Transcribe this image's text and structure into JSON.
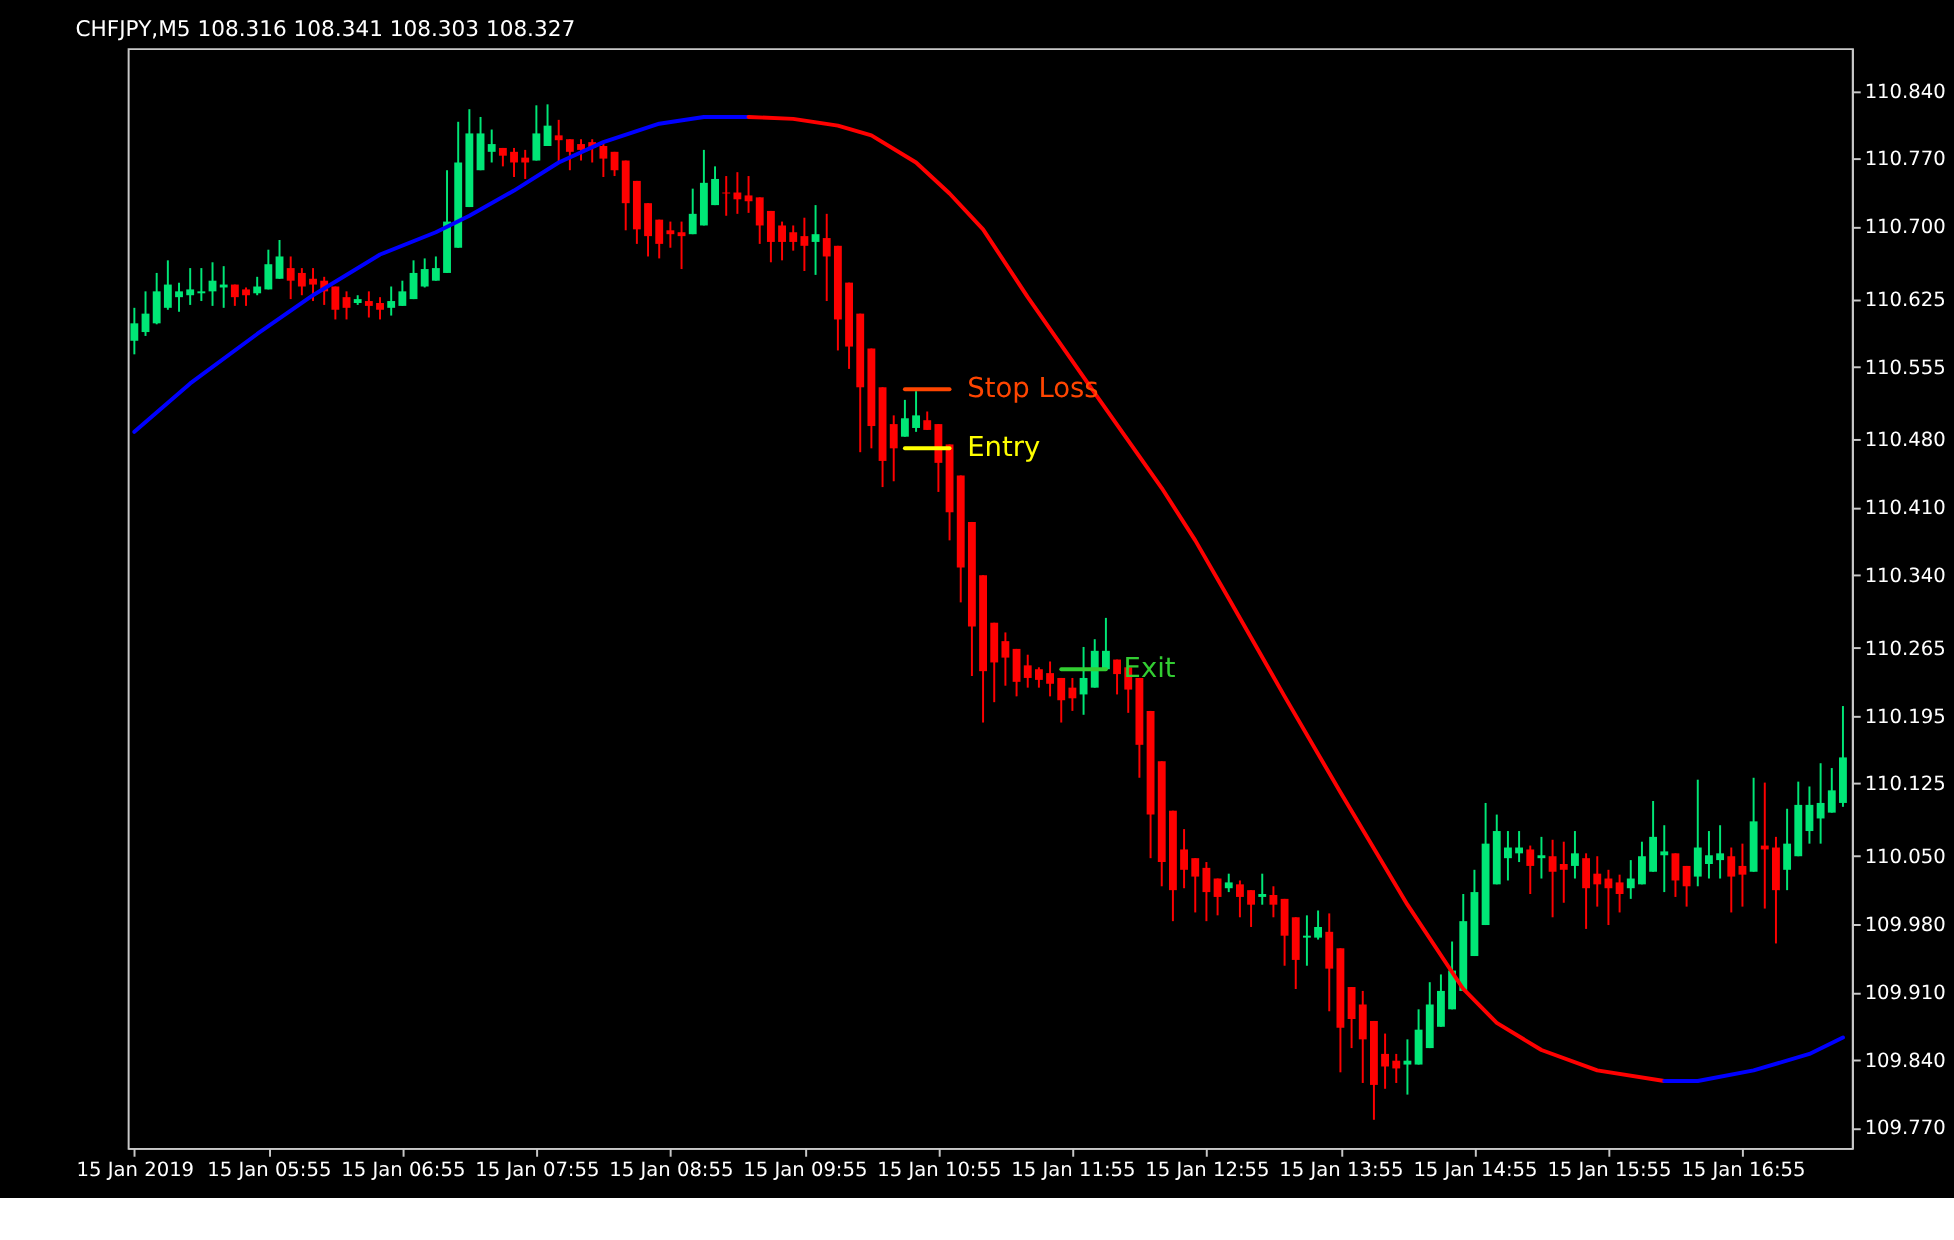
{
  "chart_data": {
    "type": "candlestick",
    "title": "CHFJPY,M5  108.316 108.341 108.303 108.327",
    "x": [
      "2019-01-15T04:55",
      "2019-01-15T05:00",
      "2019-01-15T05:05",
      "2019-01-15T05:10",
      "2019-01-15T05:15",
      "2019-01-15T05:20",
      "2019-01-15T05:25",
      "2019-01-15T05:30",
      "2019-01-15T05:35",
      "2019-01-15T05:40",
      "2019-01-15T05:45",
      "2019-01-15T05:50",
      "2019-01-15T05:55",
      "2019-01-15T06:00",
      "2019-01-15T06:05",
      "2019-01-15T06:10",
      "2019-01-15T06:15",
      "2019-01-15T06:20",
      "2019-01-15T06:25",
      "2019-01-15T06:30",
      "2019-01-15T06:35",
      "2019-01-15T06:40",
      "2019-01-15T06:45",
      "2019-01-15T06:50",
      "2019-01-15T06:55",
      "2019-01-15T07:00",
      "2019-01-15T07:05",
      "2019-01-15T07:10",
      "2019-01-15T07:15",
      "2019-01-15T07:20",
      "2019-01-15T07:25",
      "2019-01-15T07:30",
      "2019-01-15T07:35",
      "2019-01-15T07:40",
      "2019-01-15T07:45",
      "2019-01-15T07:50",
      "2019-01-15T07:55",
      "2019-01-15T08:00",
      "2019-01-15T08:05",
      "2019-01-15T08:10",
      "2019-01-15T08:15",
      "2019-01-15T08:20",
      "2019-01-15T08:25",
      "2019-01-15T08:30",
      "2019-01-15T08:35",
      "2019-01-15T08:40",
      "2019-01-15T08:45",
      "2019-01-15T08:50",
      "2019-01-15T08:55",
      "2019-01-15T09:00",
      "2019-01-15T09:05",
      "2019-01-15T09:10",
      "2019-01-15T09:15",
      "2019-01-15T09:20",
      "2019-01-15T09:25",
      "2019-01-15T09:30",
      "2019-01-15T09:35",
      "2019-01-15T09:40",
      "2019-01-15T09:45",
      "2019-01-15T09:50",
      "2019-01-15T09:55",
      "2019-01-15T10:00",
      "2019-01-15T10:05",
      "2019-01-15T10:10",
      "2019-01-15T10:15",
      "2019-01-15T10:20",
      "2019-01-15T10:25",
      "2019-01-15T10:30",
      "2019-01-15T10:35",
      "2019-01-15T10:40",
      "2019-01-15T10:45",
      "2019-01-15T10:50",
      "2019-01-15T10:55",
      "2019-01-15T11:00",
      "2019-01-15T11:05",
      "2019-01-15T11:10",
      "2019-01-15T11:15",
      "2019-01-15T11:20",
      "2019-01-15T11:25",
      "2019-01-15T11:30",
      "2019-01-15T11:35",
      "2019-01-15T11:40",
      "2019-01-15T11:45",
      "2019-01-15T11:50",
      "2019-01-15T11:55",
      "2019-01-15T12:00",
      "2019-01-15T12:05",
      "2019-01-15T12:10",
      "2019-01-15T12:15",
      "2019-01-15T12:20",
      "2019-01-15T12:25",
      "2019-01-15T12:30",
      "2019-01-15T12:35",
      "2019-01-15T12:40",
      "2019-01-15T12:45",
      "2019-01-15T12:50",
      "2019-01-15T12:55",
      "2019-01-15T13:00",
      "2019-01-15T13:05",
      "2019-01-15T13:10",
      "2019-01-15T13:15",
      "2019-01-15T13:20",
      "2019-01-15T13:25",
      "2019-01-15T13:30",
      "2019-01-15T13:35",
      "2019-01-15T13:40",
      "2019-01-15T13:45",
      "2019-01-15T13:50",
      "2019-01-15T13:55",
      "2019-01-15T14:00",
      "2019-01-15T14:05",
      "2019-01-15T14:10",
      "2019-01-15T14:15",
      "2019-01-15T14:20",
      "2019-01-15T14:25",
      "2019-01-15T14:30",
      "2019-01-15T14:35",
      "2019-01-15T14:40",
      "2019-01-15T14:45",
      "2019-01-15T14:50",
      "2019-01-15T14:55",
      "2019-01-15T15:00",
      "2019-01-15T15:05",
      "2019-01-15T15:10",
      "2019-01-15T15:15",
      "2019-01-15T15:20",
      "2019-01-15T15:25",
      "2019-01-15T15:30",
      "2019-01-15T15:35",
      "2019-01-15T15:40",
      "2019-01-15T15:45",
      "2019-01-15T15:50",
      "2019-01-15T15:55",
      "2019-01-15T16:00",
      "2019-01-15T16:05",
      "2019-01-15T16:10",
      "2019-01-15T16:15",
      "2019-01-15T16:20",
      "2019-01-15T16:25",
      "2019-01-15T16:30",
      "2019-01-15T16:35",
      "2019-01-15T16:40",
      "2019-01-15T16:45",
      "2019-01-15T16:50",
      "2019-01-15T16:55",
      "2019-01-15T17:00",
      "2019-01-15T17:05",
      "2019-01-15T17:10",
      "2019-01-15T17:15",
      "2019-01-15T17:20",
      "2019-01-15T17:25",
      "2019-01-15T17:30",
      "2019-01-15T17:35",
      "2019-01-15T17:40"
    ],
    "ohlc": [
      [
        110.582,
        110.616,
        110.568,
        110.6
      ],
      [
        110.591,
        110.633,
        110.587,
        110.61
      ],
      [
        110.6,
        110.652,
        110.599,
        110.633
      ],
      [
        110.616,
        110.665,
        110.614,
        110.64
      ],
      [
        110.627,
        110.642,
        110.612,
        110.633
      ],
      [
        110.629,
        110.657,
        110.619,
        110.635
      ],
      [
        110.631,
        110.657,
        110.623,
        110.633
      ],
      [
        110.633,
        110.663,
        110.618,
        110.644
      ],
      [
        110.637,
        110.659,
        110.616,
        110.64
      ],
      [
        110.64,
        110.64,
        110.618,
        110.627
      ],
      [
        110.635,
        110.637,
        110.618,
        110.629
      ],
      [
        110.631,
        110.648,
        110.629,
        110.638
      ],
      [
        110.635,
        110.676,
        110.635,
        110.661
      ],
      [
        110.646,
        110.686,
        110.646,
        110.669
      ],
      [
        110.657,
        110.669,
        110.625,
        110.644
      ],
      [
        110.652,
        110.657,
        110.629,
        110.638
      ],
      [
        110.646,
        110.657,
        110.623,
        110.64
      ],
      [
        110.644,
        110.648,
        110.619,
        110.633
      ],
      [
        110.638,
        110.638,
        110.604,
        110.614
      ],
      [
        110.627,
        110.633,
        110.604,
        110.616
      ],
      [
        110.621,
        110.629,
        110.619,
        110.625
      ],
      [
        110.623,
        110.633,
        110.606,
        110.618
      ],
      [
        110.621,
        110.627,
        110.604,
        110.614
      ],
      [
        110.616,
        110.638,
        110.608,
        110.623
      ],
      [
        110.618,
        110.644,
        110.618,
        110.633
      ],
      [
        110.625,
        110.665,
        110.625,
        110.652
      ],
      [
        110.638,
        110.667,
        110.637,
        110.656
      ],
      [
        110.644,
        110.669,
        110.644,
        110.657
      ],
      [
        110.652,
        110.758,
        110.652,
        110.705
      ],
      [
        110.678,
        110.808,
        110.678,
        110.766
      ],
      [
        110.72,
        110.821,
        110.72,
        110.796
      ],
      [
        110.758,
        110.813,
        110.758,
        110.796
      ],
      [
        110.777,
        110.8,
        110.766,
        110.785
      ],
      [
        110.781,
        110.781,
        110.762,
        110.773
      ],
      [
        110.777,
        110.781,
        110.751,
        110.766
      ],
      [
        110.771,
        110.779,
        110.749,
        110.766
      ],
      [
        110.768,
        110.825,
        110.768,
        110.796
      ],
      [
        110.783,
        110.826,
        110.783,
        110.804
      ],
      [
        110.794,
        110.81,
        110.766,
        110.789
      ],
      [
        110.79,
        110.79,
        110.758,
        110.777
      ],
      [
        110.785,
        110.79,
        110.768,
        110.779
      ],
      [
        110.787,
        110.79,
        110.766,
        110.781
      ],
      [
        110.783,
        110.787,
        110.751,
        110.77
      ],
      [
        110.777,
        110.777,
        110.752,
        110.758
      ],
      [
        110.768,
        110.768,
        110.696,
        110.724
      ],
      [
        110.747,
        110.747,
        110.682,
        110.697
      ],
      [
        110.724,
        110.724,
        110.669,
        110.69
      ],
      [
        110.707,
        110.707,
        110.667,
        110.682
      ],
      [
        110.696,
        110.705,
        110.678,
        110.692
      ],
      [
        110.694,
        110.705,
        110.656,
        110.69
      ],
      [
        110.692,
        110.739,
        110.692,
        110.713
      ],
      [
        110.701,
        110.779,
        110.701,
        110.745
      ],
      [
        110.722,
        110.762,
        110.722,
        110.749
      ],
      [
        110.735,
        110.752,
        110.711,
        110.734
      ],
      [
        110.735,
        110.756,
        110.713,
        110.728
      ],
      [
        110.732,
        110.752,
        110.714,
        110.726
      ],
      [
        110.73,
        110.73,
        110.682,
        110.701
      ],
      [
        110.716,
        110.716,
        110.663,
        110.684
      ],
      [
        110.701,
        110.705,
        110.665,
        110.684
      ],
      [
        110.694,
        110.701,
        110.675,
        110.684
      ],
      [
        110.69,
        110.709,
        110.654,
        110.68
      ],
      [
        110.684,
        110.722,
        110.65,
        110.692
      ],
      [
        110.688,
        110.713,
        110.623,
        110.669
      ],
      [
        110.68,
        110.68,
        110.572,
        110.604
      ],
      [
        110.642,
        110.642,
        110.553,
        110.576
      ],
      [
        110.61,
        110.61,
        110.467,
        110.534
      ],
      [
        110.574,
        110.574,
        110.471,
        110.494
      ],
      [
        110.534,
        110.534,
        110.431,
        110.458
      ],
      [
        110.496,
        110.505,
        110.437,
        110.471
      ],
      [
        110.483,
        110.521,
        110.483,
        110.502
      ],
      [
        110.492,
        110.53,
        110.488,
        110.505
      ],
      [
        110.5,
        110.509,
        110.49,
        110.49
      ],
      [
        110.496,
        110.496,
        110.426,
        110.456
      ],
      [
        110.475,
        110.475,
        110.376,
        110.405
      ],
      [
        110.443,
        110.443,
        110.312,
        110.348
      ],
      [
        110.395,
        110.395,
        110.236,
        110.287
      ],
      [
        110.34,
        110.34,
        110.188,
        110.241
      ],
      [
        110.291,
        110.291,
        110.209,
        110.25
      ],
      [
        110.272,
        110.281,
        110.226,
        110.255
      ],
      [
        110.264,
        110.264,
        110.215,
        110.23
      ],
      [
        110.247,
        110.258,
        110.224,
        110.234
      ],
      [
        110.243,
        110.245,
        110.224,
        110.232
      ],
      [
        110.239,
        110.251,
        110.215,
        110.228
      ],
      [
        110.234,
        110.234,
        110.188,
        110.211
      ],
      [
        110.224,
        110.234,
        110.2,
        110.213
      ],
      [
        110.217,
        110.266,
        110.196,
        110.234
      ],
      [
        110.224,
        110.274,
        110.224,
        110.262
      ],
      [
        110.243,
        110.296,
        110.243,
        110.262
      ],
      [
        110.253,
        110.253,
        110.217,
        110.238
      ],
      [
        110.245,
        110.245,
        110.198,
        110.222
      ],
      [
        110.234,
        110.234,
        110.131,
        110.165
      ],
      [
        110.2,
        110.2,
        110.048,
        110.093
      ],
      [
        110.148,
        110.148,
        110.019,
        110.044
      ],
      [
        110.097,
        110.097,
        109.983,
        110.015
      ],
      [
        110.057,
        110.078,
        110.017,
        110.036
      ],
      [
        110.048,
        110.048,
        109.992,
        110.029
      ],
      [
        110.038,
        110.044,
        109.983,
        110.013
      ],
      [
        110.027,
        110.027,
        109.989,
        110.008
      ],
      [
        110.017,
        110.032,
        110.013,
        110.023
      ],
      [
        110.021,
        110.025,
        109.987,
        110.008
      ],
      [
        110.015,
        110.015,
        109.977,
        110.0
      ],
      [
        110.008,
        110.032,
        110.0,
        110.011
      ],
      [
        110.01,
        110.019,
        109.987,
        110.0
      ],
      [
        110.006,
        110.006,
        109.937,
        109.968
      ],
      [
        109.987,
        109.987,
        109.913,
        109.943
      ],
      [
        109.966,
        109.989,
        109.937,
        109.968
      ],
      [
        109.966,
        109.994,
        109.964,
        109.977
      ],
      [
        109.972,
        109.991,
        109.89,
        109.934
      ],
      [
        109.955,
        109.955,
        109.827,
        109.873
      ],
      [
        109.915,
        109.915,
        109.852,
        109.882
      ],
      [
        109.897,
        109.911,
        109.816,
        109.861
      ],
      [
        109.88,
        109.88,
        109.778,
        109.814
      ],
      [
        109.846,
        109.867,
        109.81,
        109.833
      ],
      [
        109.839,
        109.846,
        109.816,
        109.831
      ],
      [
        109.835,
        109.861,
        109.804,
        109.839
      ],
      [
        109.835,
        109.892,
        109.835,
        109.871
      ],
      [
        109.852,
        109.92,
        109.852,
        109.897
      ],
      [
        109.874,
        109.928,
        109.874,
        109.911
      ],
      [
        109.892,
        109.962,
        109.892,
        109.932
      ],
      [
        109.911,
        110.011,
        109.911,
        109.983
      ],
      [
        109.947,
        110.036,
        109.947,
        110.013
      ],
      [
        109.979,
        110.105,
        109.979,
        110.063
      ],
      [
        110.021,
        110.093,
        110.021,
        110.076
      ],
      [
        110.048,
        110.076,
        110.025,
        110.059
      ],
      [
        110.053,
        110.076,
        110.044,
        110.059
      ],
      [
        110.057,
        110.061,
        110.011,
        110.04
      ],
      [
        110.048,
        110.07,
        110.027,
        110.051
      ],
      [
        110.05,
        110.067,
        109.987,
        110.034
      ],
      [
        110.042,
        110.065,
        110.002,
        110.036
      ],
      [
        110.04,
        110.076,
        110.027,
        110.053
      ],
      [
        110.048,
        110.053,
        109.975,
        110.017
      ],
      [
        110.032,
        110.05,
        109.998,
        110.021
      ],
      [
        110.027,
        110.036,
        109.979,
        110.017
      ],
      [
        110.023,
        110.031,
        109.992,
        110.011
      ],
      [
        110.017,
        110.046,
        110.006,
        110.027
      ],
      [
        110.021,
        110.065,
        110.021,
        110.05
      ],
      [
        110.034,
        110.107,
        110.034,
        110.07
      ],
      [
        110.051,
        110.082,
        110.013,
        110.055
      ],
      [
        110.053,
        110.053,
        110.008,
        110.025
      ],
      [
        110.04,
        110.04,
        109.998,
        110.019
      ],
      [
        110.029,
        110.129,
        110.019,
        110.059
      ],
      [
        110.042,
        110.076,
        110.027,
        110.051
      ],
      [
        110.046,
        110.082,
        110.027,
        110.053
      ],
      [
        110.05,
        110.059,
        109.992,
        110.029
      ],
      [
        110.04,
        110.063,
        109.998,
        110.031
      ],
      [
        110.034,
        110.131,
        110.034,
        110.086
      ],
      [
        110.061,
        110.126,
        109.996,
        110.057
      ],
      [
        110.059,
        110.07,
        109.96,
        110.015
      ],
      [
        110.036,
        110.099,
        110.015,
        110.063
      ],
      [
        110.05,
        110.127,
        110.05,
        110.103
      ],
      [
        110.076,
        110.122,
        110.063,
        110.103
      ],
      [
        110.089,
        110.146,
        110.063,
        110.105
      ],
      [
        110.095,
        110.141,
        110.095,
        110.118
      ],
      [
        110.105,
        110.205,
        110.101,
        110.152
      ]
    ],
    "colors": [
      "#00e676",
      "#00e676",
      "#00e676",
      "#00e676",
      "#00e676",
      "#00e676",
      "#00e676",
      "#00e676",
      "#00e676",
      "#ff0000",
      "#ff0000",
      "#00e676",
      "#00e676",
      "#00e676",
      "#ff0000",
      "#ff0000",
      "#ff0000",
      "#ff0000",
      "#ff0000",
      "#ff0000",
      "#00e676",
      "#ff0000",
      "#ff0000",
      "#00e676",
      "#00e676",
      "#00e676",
      "#00e676",
      "#00e676",
      "#00e676",
      "#00e676",
      "#00e676",
      "#00e676",
      "#00e676",
      "#ff0000",
      "#ff0000",
      "#ff0000",
      "#00e676",
      "#00e676",
      "#ff0000",
      "#ff0000",
      "#ff0000",
      "#ff0000",
      "#ff0000",
      "#ff0000",
      "#ff0000",
      "#ff0000",
      "#ff0000",
      "#ff0000",
      "#ff0000",
      "#ff0000",
      "#00e676",
      "#00e676",
      "#00e676",
      "#ff0000",
      "#ff0000",
      "#ff0000",
      "#ff0000",
      "#ff0000",
      "#ff0000",
      "#ff0000",
      "#ff0000",
      "#00e676",
      "#ff0000",
      "#ff0000",
      "#ff0000",
      "#ff0000",
      "#ff0000",
      "#ff0000",
      "#ff0000",
      "#00e676",
      "#00e676",
      "#ff0000",
      "#ff0000",
      "#ff0000",
      "#ff0000",
      "#ff0000",
      "#ff0000",
      "#ff0000",
      "#ff0000",
      "#ff0000",
      "#ff0000",
      "#ff0000",
      "#ff0000",
      "#ff0000",
      "#ff0000",
      "#00e676",
      "#00e676",
      "#00e676",
      "#ff0000",
      "#ff0000",
      "#ff0000",
      "#ff0000",
      "#ff0000",
      "#ff0000",
      "#ff0000",
      "#ff0000",
      "#ff0000",
      "#ff0000",
      "#00e676",
      "#ff0000",
      "#ff0000",
      "#00e676",
      "#ff0000",
      "#ff0000",
      "#ff0000",
      "#00e676",
      "#00e676",
      "#ff0000",
      "#ff0000",
      "#ff0000",
      "#ff0000",
      "#ff0000",
      "#ff0000",
      "#ff0000",
      "#00e676",
      "#00e676",
      "#00e676",
      "#00e676",
      "#00e676",
      "#00e676",
      "#00e676",
      "#00e676",
      "#00e676",
      "#00e676",
      "#00e676",
      "#ff0000",
      "#00e676",
      "#ff0000",
      "#ff0000",
      "#00e676",
      "#ff0000",
      "#ff0000",
      "#ff0000",
      "#ff0000",
      "#00e676",
      "#00e676",
      "#00e676",
      "#00e676",
      "#ff0000",
      "#ff0000",
      "#00e676",
      "#00e676",
      "#00e676",
      "#ff0000",
      "#ff0000",
      "#00e676",
      "#ff0000",
      "#ff0000",
      "#00e676",
      "#00e676",
      "#00e676",
      "#00e676",
      "#00e676",
      "#00e676"
    ],
    "series": [
      {
        "type": "line",
        "color": "#0000ff",
        "x": [
          "2019-01-15T04:55",
          "2019-01-15T05:20",
          "2019-01-15T05:50",
          "2019-01-15T06:15",
          "2019-01-15T06:45",
          "2019-01-15T07:10",
          "2019-01-15T07:25",
          "2019-01-15T07:45",
          "2019-01-15T08:05",
          "2019-01-15T08:25",
          "2019-01-15T08:50",
          "2019-01-15T09:10",
          "2019-01-15T09:30"
        ],
        "values": [
          110.488,
          110.538,
          110.589,
          110.629,
          110.671,
          110.694,
          110.711,
          110.737,
          110.766,
          110.787,
          110.806,
          110.813,
          110.813
        ]
      },
      {
        "type": "line",
        "color": "#ff0000",
        "x": [
          "2019-01-15T09:30",
          "2019-01-15T09:50",
          "2019-01-15T10:10",
          "2019-01-15T10:25",
          "2019-01-15T10:45",
          "2019-01-15T11:00",
          "2019-01-15T11:15",
          "2019-01-15T11:35",
          "2019-01-15T12:05",
          "2019-01-15T12:35",
          "2019-01-15T12:50",
          "2019-01-15T13:05",
          "2019-01-15T13:30",
          "2019-01-15T13:55",
          "2019-01-15T14:25",
          "2019-01-15T14:50",
          "2019-01-15T15:05",
          "2019-01-15T15:25",
          "2019-01-15T15:50",
          "2019-01-15T16:20"
        ],
        "values": [
          110.813,
          110.811,
          110.804,
          110.794,
          110.766,
          110.734,
          110.697,
          110.627,
          110.528,
          110.43,
          110.376,
          110.316,
          110.215,
          110.116,
          110.0,
          109.913,
          109.878,
          109.85,
          109.829,
          109.818
        ]
      },
      {
        "type": "line",
        "color": "#0000ff",
        "x": [
          "2019-01-15T16:20",
          "2019-01-15T16:35",
          "2019-01-15T17:00",
          "2019-01-15T17:25",
          "2019-01-15T17:40"
        ],
        "values": [
          109.818,
          109.818,
          109.829,
          109.846,
          109.863
        ]
      },
      {
        "type": "line",
        "name": "Stop Loss",
        "color": "#ff4500",
        "x": [
          "2019-01-15T10:40",
          "2019-01-15T11:00"
        ],
        "values": [
          110.532,
          110.532
        ]
      },
      {
        "type": "line",
        "name": "Entry",
        "color": "#ffff00",
        "x": [
          "2019-01-15T10:40",
          "2019-01-15T11:00"
        ],
        "values": [
          110.471,
          110.471
        ]
      },
      {
        "type": "line",
        "name": "Exit",
        "color": "#32cd32",
        "x": [
          "2019-01-15T11:50",
          "2019-01-15T12:10"
        ],
        "values": [
          110.243,
          110.243
        ]
      }
    ],
    "xlim": [
      "2019-01-15T04:52",
      "2019-01-15T17:44"
    ],
    "xticks": [
      {
        "value": "2019-01-15T04:55",
        "label": "15 Jan 2019"
      },
      {
        "value": "2019-01-15T05:55",
        "label": "15 Jan 05:55"
      },
      {
        "value": "2019-01-15T06:55",
        "label": "15 Jan 06:55"
      },
      {
        "value": "2019-01-15T07:55",
        "label": "15 Jan 07:55"
      },
      {
        "value": "2019-01-15T08:55",
        "label": "15 Jan 08:55"
      },
      {
        "value": "2019-01-15T09:55",
        "label": "15 Jan 09:55"
      },
      {
        "value": "2019-01-15T10:55",
        "label": "15 Jan 10:55"
      },
      {
        "value": "2019-01-15T11:55",
        "label": "15 Jan 11:55"
      },
      {
        "value": "2019-01-15T12:55",
        "label": "15 Jan 12:55"
      },
      {
        "value": "2019-01-15T13:55",
        "label": "15 Jan 13:55"
      },
      {
        "value": "2019-01-15T14:55",
        "label": "15 Jan 14:55"
      },
      {
        "value": "2019-01-15T15:55",
        "label": "15 Jan 15:55"
      },
      {
        "value": "2019-01-15T16:55",
        "label": "15 Jan 16:55"
      }
    ],
    "ylim": [
      109.749,
      110.884
    ],
    "yticks": [
      {
        "value": 109.77,
        "label": "109.770"
      },
      {
        "value": 109.84,
        "label": "109.840"
      },
      {
        "value": 109.91,
        "label": "109.910"
      },
      {
        "value": 109.98,
        "label": "109.980"
      },
      {
        "value": 110.05,
        "label": "110.050"
      },
      110.125,
      110.195,
      110.265,
      {
        "value": 110.34,
        "label": "110.340"
      },
      {
        "value": 110.41,
        "label": "110.410"
      },
      {
        "value": 110.48,
        "label": "110.480"
      },
      110.555,
      110.625,
      {
        "value": 110.7,
        "label": "110.700"
      },
      {
        "value": 110.77,
        "label": "110.770"
      },
      {
        "value": 110.84,
        "label": "110.840"
      }
    ]
  }
}
